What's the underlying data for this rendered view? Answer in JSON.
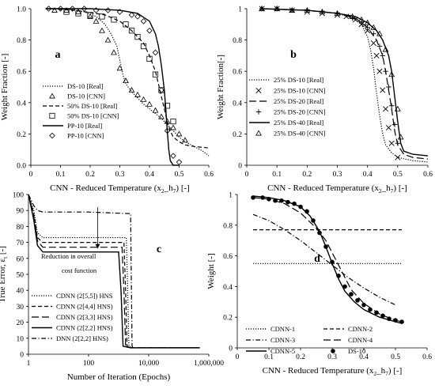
{
  "chart_data": [
    {
      "type": "line",
      "panel": "a",
      "ylabel": "Weight Fraction [-]",
      "xlabel_parts": [
        "CNN - Reduced Temperature (x",
        "2",
        "_h",
        "7",
        ") [-]"
      ],
      "xlim": [
        0,
        0.6
      ],
      "ylim": [
        0,
        1
      ],
      "xticks": [
        "0",
        "0.1",
        "0.2",
        "0.3",
        "0.4",
        "0.5",
        "0.6"
      ],
      "yticks": [
        "0.0",
        "0.2",
        "0.4",
        "0.6",
        "0.8",
        "1.0"
      ],
      "legend_position": "lower-left",
      "series": [
        {
          "name": "DS-10 [Real]",
          "style": "dotted",
          "x": [
            0.05,
            0.12,
            0.18,
            0.22,
            0.25,
            0.27,
            0.29,
            0.3,
            0.31,
            0.32,
            0.34,
            0.36,
            0.38,
            0.4,
            0.42,
            0.44,
            0.46,
            0.48,
            0.5,
            0.52,
            0.55,
            0.58,
            0.6
          ],
          "y": [
            1.0,
            1.0,
            0.98,
            0.95,
            0.9,
            0.84,
            0.76,
            0.67,
            0.58,
            0.52,
            0.47,
            0.43,
            0.39,
            0.36,
            0.33,
            0.3,
            0.26,
            0.22,
            0.18,
            0.15,
            0.12,
            0.09,
            0.06
          ]
        },
        {
          "name": "DS-10 [CNN]",
          "style": "marker-triangle",
          "x": [
            0.08,
            0.12,
            0.16,
            0.2,
            0.22,
            0.24,
            0.26,
            0.28,
            0.3,
            0.32,
            0.34,
            0.36,
            0.38,
            0.4,
            0.42,
            0.44,
            0.46,
            0.48,
            0.5,
            0.52
          ],
          "y": [
            0.99,
            0.99,
            0.98,
            0.95,
            0.92,
            0.86,
            0.8,
            0.72,
            0.62,
            0.54,
            0.48,
            0.45,
            0.42,
            0.39,
            0.35,
            0.31,
            0.28,
            0.24,
            0.2,
            0.16
          ]
        },
        {
          "name": "50% DS-10 [Real]",
          "style": "dashed",
          "x": [
            0.05,
            0.15,
            0.25,
            0.3,
            0.34,
            0.38,
            0.4,
            0.42,
            0.43,
            0.44,
            0.45,
            0.46,
            0.47,
            0.48,
            0.5,
            0.52,
            0.55,
            0.6
          ],
          "y": [
            1.0,
            0.99,
            0.96,
            0.92,
            0.86,
            0.78,
            0.7,
            0.6,
            0.52,
            0.44,
            0.36,
            0.28,
            0.22,
            0.18,
            0.15,
            0.13,
            0.12,
            0.11
          ]
        },
        {
          "name": "50% DS-10 [CNN]",
          "style": "marker-square",
          "x": [
            0.12,
            0.16,
            0.2,
            0.24,
            0.28,
            0.32,
            0.34,
            0.36,
            0.38,
            0.4,
            0.42,
            0.44,
            0.46,
            0.48
          ],
          "y": [
            0.98,
            0.97,
            0.96,
            0.95,
            0.93,
            0.9,
            0.86,
            0.82,
            0.76,
            0.68,
            0.58,
            0.48,
            0.38,
            0.28
          ]
        },
        {
          "name": "PP-10 [Real]",
          "style": "solid",
          "x": [
            0.05,
            0.2,
            0.3,
            0.36,
            0.4,
            0.42,
            0.43,
            0.44,
            0.45,
            0.455,
            0.46,
            0.465,
            0.47,
            0.48,
            0.5
          ],
          "y": [
            1.0,
            1.0,
            0.99,
            0.97,
            0.92,
            0.84,
            0.76,
            0.64,
            0.48,
            0.36,
            0.22,
            0.1,
            0.03,
            0.0,
            0.0
          ]
        },
        {
          "name": "PP-10 [CNN]",
          "style": "marker-diamond",
          "x": [
            0.06,
            0.1,
            0.14,
            0.18,
            0.22,
            0.26,
            0.3,
            0.34,
            0.36,
            0.38,
            0.4,
            0.42,
            0.44,
            0.46,
            0.48,
            0.5
          ],
          "y": [
            1.0,
            1.0,
            1.0,
            1.0,
            0.99,
            0.99,
            0.98,
            0.96,
            0.95,
            0.92,
            0.86,
            0.72,
            0.48,
            0.22,
            0.06,
            0.02
          ]
        }
      ]
    },
    {
      "type": "line",
      "panel": "b",
      "ylabel": "Weight Fraction[-]",
      "xlabel_parts": [
        "CNN - Reduced Temperature (x",
        "2",
        "_h",
        "7",
        ") [-]"
      ],
      "xlim": [
        0,
        0.6
      ],
      "ylim": [
        0,
        1
      ],
      "xticks": [
        "0",
        "0.1",
        "0.2",
        "0.3",
        "0.4",
        "0.5",
        "0.6"
      ],
      "yticks": [
        "0",
        "0.2",
        "0.4",
        "0.6",
        "0.8",
        "1"
      ],
      "legend_position": "lower-left",
      "series": [
        {
          "name": "25% DS-10 [Real]",
          "style": "dotted",
          "x": [
            0.05,
            0.2,
            0.3,
            0.35,
            0.38,
            0.4,
            0.41,
            0.42,
            0.43,
            0.44,
            0.45,
            0.46,
            0.48,
            0.5,
            0.55,
            0.6
          ],
          "y": [
            1.0,
            0.99,
            0.97,
            0.94,
            0.9,
            0.82,
            0.74,
            0.62,
            0.46,
            0.32,
            0.2,
            0.13,
            0.08,
            0.05,
            0.03,
            0.02
          ]
        },
        {
          "name": "25% DS-10 [CNN]",
          "style": "marker-x",
          "x": [
            0.05,
            0.1,
            0.15,
            0.2,
            0.25,
            0.3,
            0.33,
            0.36,
            0.38,
            0.4,
            0.42,
            0.43,
            0.44,
            0.45,
            0.46,
            0.47,
            0.48,
            0.5
          ],
          "y": [
            1.0,
            1.0,
            0.99,
            0.98,
            0.97,
            0.96,
            0.95,
            0.93,
            0.9,
            0.86,
            0.78,
            0.7,
            0.6,
            0.48,
            0.36,
            0.24,
            0.14,
            0.05
          ]
        },
        {
          "name": "25% DS-20 [Real]",
          "style": "long-dashed",
          "x": [
            0.05,
            0.2,
            0.3,
            0.36,
            0.4,
            0.43,
            0.45,
            0.46,
            0.47,
            0.48,
            0.49,
            0.5,
            0.52,
            0.55,
            0.6
          ],
          "y": [
            1.0,
            0.99,
            0.97,
            0.94,
            0.88,
            0.8,
            0.7,
            0.6,
            0.48,
            0.36,
            0.22,
            0.13,
            0.07,
            0.05,
            0.04
          ]
        },
        {
          "name": "25% DS-20 [CNN]",
          "style": "marker-plus",
          "x": [
            0.05,
            0.1,
            0.15,
            0.2,
            0.25,
            0.3,
            0.35,
            0.38,
            0.4,
            0.42,
            0.44,
            0.45,
            0.46,
            0.47,
            0.48,
            0.49,
            0.5
          ],
          "y": [
            1.0,
            1.0,
            0.99,
            0.99,
            0.98,
            0.97,
            0.94,
            0.91,
            0.88,
            0.84,
            0.76,
            0.7,
            0.6,
            0.5,
            0.38,
            0.26,
            0.14
          ]
        },
        {
          "name": "25% DS-40 [Real]",
          "style": "solid",
          "x": [
            0.05,
            0.2,
            0.3,
            0.36,
            0.4,
            0.43,
            0.45,
            0.47,
            0.48,
            0.49,
            0.5,
            0.51,
            0.52,
            0.55,
            0.6
          ],
          "y": [
            1.0,
            0.99,
            0.97,
            0.95,
            0.91,
            0.86,
            0.8,
            0.7,
            0.6,
            0.44,
            0.28,
            0.14,
            0.09,
            0.07,
            0.06
          ]
        },
        {
          "name": "25% DS-40 [CNN]",
          "style": "marker-triangle",
          "x": [
            0.05,
            0.1,
            0.15,
            0.2,
            0.25,
            0.3,
            0.35,
            0.38,
            0.4,
            0.42,
            0.44,
            0.46,
            0.48,
            0.5,
            0.51
          ],
          "y": [
            1.0,
            1.0,
            0.99,
            0.99,
            0.98,
            0.97,
            0.95,
            0.93,
            0.91,
            0.88,
            0.84,
            0.74,
            0.58,
            0.36,
            0.18
          ]
        }
      ]
    },
    {
      "type": "line",
      "panel": "c",
      "ylabel_parts": [
        "True Error, ε",
        "t",
        " [-]"
      ],
      "xlabel": "Number of Iteration (Epochs)",
      "xscale": "log",
      "xlim": [
        1,
        1000000
      ],
      "ylim": [
        0,
        100
      ],
      "xtick_values": [
        1,
        100,
        10000,
        1000000
      ],
      "xticks": [
        "1",
        "100",
        "10,000",
        "1,000,000"
      ],
      "ytick_values": [
        0,
        10,
        20,
        30,
        40,
        50,
        60,
        70,
        80,
        90,
        100
      ],
      "yticks": [
        "0",
        "10",
        "20",
        "30",
        "40",
        "50",
        "60",
        "70",
        "80",
        "90",
        "100"
      ],
      "annotation": [
        "Reduction in overall",
        "cost function"
      ],
      "annotation_arrow": {
        "x": 200,
        "y_from": 92,
        "y_to": 66
      },
      "legend_position": "lower-left",
      "series": [
        {
          "name": "CDNN (2[5,5]) HNS",
          "style": "dotted",
          "x": [
            1,
            1.5,
            2,
            3,
            10,
            100,
            1000,
            1800,
            2000,
            2200,
            3000,
            10000,
            100000,
            500000
          ],
          "y": [
            100,
            90,
            76,
            73,
            73,
            73,
            73,
            73,
            40,
            5,
            4,
            4,
            4,
            4
          ]
        },
        {
          "name": "CDNN (2[4,4] HNS)",
          "style": "dashed",
          "x": [
            1,
            1.5,
            2,
            3,
            10,
            100,
            1500,
            1700,
            1900,
            2500,
            10000,
            100000,
            500000
          ],
          "y": [
            100,
            88,
            73,
            70,
            70,
            70,
            70,
            40,
            5,
            4,
            4,
            4,
            4
          ]
        },
        {
          "name": "CDNN (2[3,3] HNS)",
          "style": "long-dashed",
          "x": [
            1,
            1.5,
            2,
            3,
            10,
            100,
            1300,
            1500,
            1700,
            2500,
            10000,
            100000,
            500000
          ],
          "y": [
            100,
            86,
            71,
            67,
            67,
            67,
            67,
            40,
            5,
            4,
            4,
            4,
            4
          ]
        },
        {
          "name": "CDNN (2[2,2] HNS)",
          "style": "solid",
          "x": [
            1,
            1.5,
            2,
            3,
            10,
            100,
            1000,
            1200,
            1400,
            2500,
            10000,
            100000,
            500000
          ],
          "y": [
            100,
            84,
            68,
            64,
            64,
            64,
            64,
            40,
            5,
            4,
            4,
            4,
            4
          ]
        },
        {
          "name": "DNN (2[2,2] HNS)",
          "style": "dash-dot",
          "x": [
            1,
            1.5,
            2,
            3,
            10,
            100,
            2500,
            2800,
            3000,
            10000,
            100000,
            500000
          ],
          "y": [
            100,
            93,
            90,
            89,
            89,
            89,
            88,
            5,
            4,
            4,
            4,
            4
          ]
        }
      ]
    },
    {
      "type": "line",
      "panel": "d",
      "ylabel": "Weight [-]",
      "xlabel_parts": [
        "CNN - Reduced Temperature (x",
        "2",
        "_h",
        "7",
        ") [-]"
      ],
      "xlim": [
        0,
        0.6
      ],
      "ylim": [
        0,
        1
      ],
      "xticks": [
        "0",
        "0.1",
        "0.2",
        "0.3",
        "0.4",
        "0.5",
        "0.6"
      ],
      "yticks": [
        "0",
        "0.2",
        "0.4",
        "0.6",
        "0.8",
        "1"
      ],
      "legend_position": "bottom",
      "series": [
        {
          "name": "CDNN-1",
          "style": "dotted",
          "x": [
            0.05,
            0.52
          ],
          "y": [
            0.55,
            0.55
          ]
        },
        {
          "name": "CDNN-2",
          "style": "dashed",
          "x": [
            0.05,
            0.52
          ],
          "y": [
            0.77,
            0.77
          ]
        },
        {
          "name": "CDNN-3",
          "style": "dash-dot",
          "x": [
            0.05,
            0.1,
            0.15,
            0.2,
            0.25,
            0.3,
            0.35,
            0.4,
            0.45,
            0.5
          ],
          "y": [
            0.87,
            0.83,
            0.77,
            0.7,
            0.62,
            0.54,
            0.46,
            0.39,
            0.33,
            0.28
          ]
        },
        {
          "name": "CDNN-4",
          "style": "long-dashed",
          "x": [
            0.05,
            0.1,
            0.15,
            0.2,
            0.25,
            0.28,
            0.3,
            0.32,
            0.34,
            0.36,
            0.4,
            0.45,
            0.5,
            0.52
          ],
          "y": [
            0.98,
            0.97,
            0.94,
            0.88,
            0.78,
            0.7,
            0.62,
            0.54,
            0.46,
            0.38,
            0.29,
            0.22,
            0.18,
            0.17
          ]
        },
        {
          "name": "CDNN-5",
          "style": "solid",
          "x": [
            0.05,
            0.1,
            0.15,
            0.2,
            0.23,
            0.26,
            0.28,
            0.3,
            0.32,
            0.34,
            0.37,
            0.4,
            0.45,
            0.5,
            0.52
          ],
          "y": [
            0.99,
            0.98,
            0.96,
            0.92,
            0.86,
            0.76,
            0.66,
            0.55,
            0.45,
            0.37,
            0.3,
            0.25,
            0.2,
            0.17,
            0.16
          ]
        },
        {
          "name": "DS-10",
          "style": "marker-circle",
          "x": [
            0.05,
            0.08,
            0.1,
            0.12,
            0.14,
            0.16,
            0.18,
            0.2,
            0.22,
            0.24,
            0.26,
            0.28,
            0.3,
            0.32,
            0.34,
            0.36,
            0.38,
            0.4,
            0.42,
            0.44,
            0.46,
            0.48,
            0.5,
            0.52
          ],
          "y": [
            0.98,
            0.98,
            0.97,
            0.96,
            0.96,
            0.95,
            0.94,
            0.92,
            0.89,
            0.83,
            0.75,
            0.66,
            0.56,
            0.47,
            0.4,
            0.35,
            0.31,
            0.28,
            0.25,
            0.23,
            0.21,
            0.19,
            0.18,
            0.17
          ]
        }
      ]
    }
  ]
}
